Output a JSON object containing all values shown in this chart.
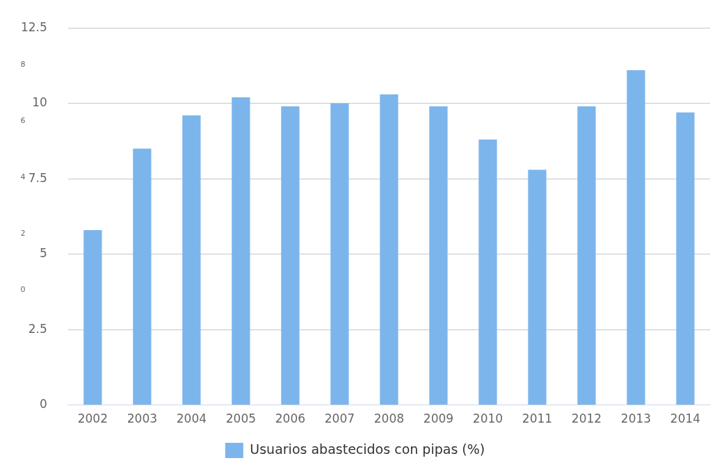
{
  "chart_data": {
    "type": "bar",
    "categories": [
      "2002",
      "2003",
      "2004",
      "2005",
      "2006",
      "2007",
      "2008",
      "2009",
      "2010",
      "2011",
      "2012",
      "2013",
      "2014"
    ],
    "series": [
      {
        "name": "Usuarios abastecidos con pipas (%)",
        "color": "#7cb5ec",
        "values": [
          5.8,
          8.5,
          9.6,
          10.2,
          9.9,
          10.0,
          10.3,
          9.9,
          8.8,
          7.8,
          9.9,
          11.1,
          9.7
        ]
      }
    ],
    "ylim": [
      0,
      12.5
    ],
    "yticks": [
      0,
      2.5,
      5,
      7.5,
      10,
      12.5
    ],
    "y2lim": [
      -4.1,
      9.3
    ],
    "y2ticks": [
      0,
      2,
      4,
      6,
      8
    ],
    "grid": "y",
    "legend": "bottom"
  }
}
